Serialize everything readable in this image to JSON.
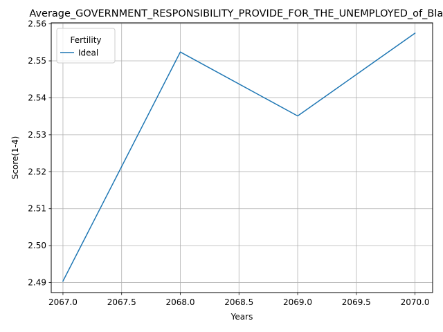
{
  "chart_data": {
    "type": "line",
    "title": "Average_GOVERNMENT_RESPONSIBILITY_PROVIDE_FOR_THE_UNEMPLOYED_of_Black",
    "xlabel": "Years",
    "ylabel": "Score(1-4)",
    "xlim": [
      2066.9,
      2070.15
    ],
    "ylim": [
      2.4873,
      2.5603
    ],
    "xticks": [
      2067.0,
      2067.5,
      2068.0,
      2068.5,
      2069.0,
      2069.5,
      2070.0
    ],
    "xtick_labels": [
      "2067.0",
      "2067.5",
      "2068.0",
      "2068.5",
      "2069.0",
      "2069.5",
      "2070.0"
    ],
    "yticks": [
      2.49,
      2.5,
      2.51,
      2.52,
      2.53,
      2.54,
      2.55,
      2.56
    ],
    "ytick_labels": [
      "2.49",
      "2.50",
      "2.51",
      "2.52",
      "2.53",
      "2.54",
      "2.55",
      "2.56"
    ],
    "grid": true,
    "legend": {
      "title": "Fertility",
      "placement": "upper-left"
    },
    "series": [
      {
        "name": "Ideal",
        "color": "#1f77b4",
        "x": [
          2067,
          2068,
          2069,
          2070
        ],
        "y": [
          2.4904,
          2.5524,
          2.5351,
          2.5575
        ]
      }
    ]
  }
}
